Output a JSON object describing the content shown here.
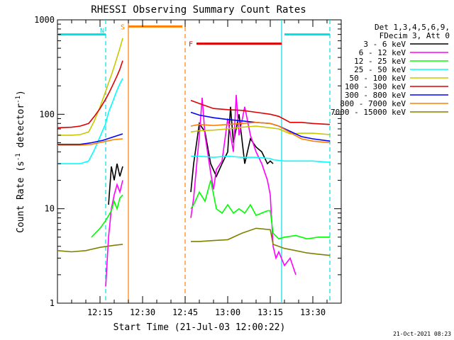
{
  "chart_data": {
    "type": "line",
    "title": "RHESSI Observing Summary Count Rates",
    "xlabel": "Start Time (21-Jul-03 12:00:22)",
    "ylabel_main": "Count Rate (s",
    "ylabel_sup1": "-1",
    "ylabel_mid": " detector",
    "ylabel_sup2": "-1",
    "ylabel_end": ")",
    "y_scale": "log",
    "xlim": [
      0,
      100
    ],
    "ylim": [
      1,
      1000
    ],
    "x_ticks": [
      {
        "x": 15,
        "label": "12:15"
      },
      {
        "x": 30,
        "label": "12:30"
      },
      {
        "x": 45,
        "label": "12:45"
      },
      {
        "x": 60,
        "label": "13:00"
      },
      {
        "x": 75,
        "label": "13:15"
      },
      {
        "x": 90,
        "label": "13:30"
      }
    ],
    "y_ticks": [
      {
        "y": 1,
        "label": "1"
      },
      {
        "y": 10,
        "label": "10"
      },
      {
        "y": 100,
        "label": "100"
      },
      {
        "y": 1000,
        "label": "1000"
      }
    ],
    "legend_header": [
      "Det 1,3,4,5,6,9,",
      "FDecim 3, Att 0"
    ],
    "legend_position": "right",
    "footer_date": "21-Oct-2021 08:23",
    "series": [
      {
        "name": "3 - 6 keV",
        "color": "#000000",
        "x": [
          18,
          19,
          20,
          21,
          22,
          23,
          47,
          48,
          50,
          52,
          54,
          56,
          58,
          60,
          61,
          62,
          64,
          66,
          68,
          70,
          72,
          74,
          75,
          76
        ],
        "y": [
          11,
          28,
          20,
          30,
          22,
          28,
          15,
          30,
          80,
          65,
          30,
          22,
          30,
          40,
          120,
          50,
          100,
          30,
          55,
          45,
          40,
          30,
          32,
          30
        ]
      },
      {
        "name": "6 - 12 keV",
        "color": "#ff00ff",
        "x": [
          17,
          18,
          19,
          20,
          21,
          22,
          23,
          47,
          48,
          50,
          51,
          52,
          54,
          55,
          56,
          58,
          60,
          62,
          63,
          64,
          66,
          68,
          70,
          72,
          74,
          75,
          76,
          77,
          78,
          80,
          82,
          84
        ],
        "y": [
          1.5,
          5,
          10,
          14,
          18,
          15,
          20,
          8,
          13,
          60,
          150,
          60,
          24,
          16,
          26,
          32,
          90,
          40,
          160,
          60,
          120,
          60,
          40,
          30,
          20,
          14,
          4,
          3,
          3.5,
          2.5,
          3,
          2
        ]
      },
      {
        "name": "12 - 25 keV",
        "color": "#00ff00",
        "x": [
          12,
          15,
          17,
          19,
          20,
          21,
          22,
          23,
          47,
          48,
          50,
          52,
          54,
          56,
          58,
          60,
          62,
          64,
          66,
          68,
          70,
          72,
          74,
          75,
          76,
          78,
          80,
          84,
          88,
          92,
          96
        ],
        "y": [
          5,
          6.2,
          7.5,
          9.5,
          12,
          10,
          13,
          14,
          10,
          11,
          15,
          12,
          20,
          10,
          9,
          11,
          9,
          10,
          9,
          11,
          8.5,
          9,
          9.5,
          9.5,
          5.5,
          4.8,
          5,
          5.2,
          4.8,
          5,
          5
        ]
      },
      {
        "name": "25 - 50 keV",
        "color": "#00ffff",
        "x": [
          0,
          5,
          8,
          11,
          13,
          15,
          17,
          18,
          19,
          20,
          21,
          22,
          23,
          47,
          50,
          55,
          60,
          65,
          70,
          75,
          76,
          80,
          85,
          90,
          96
        ],
        "y": [
          30,
          30,
          30,
          32,
          42,
          58,
          80,
          105,
          125,
          150,
          180,
          210,
          240,
          36,
          36,
          35,
          36,
          35,
          35,
          34,
          33,
          32,
          32,
          32,
          31
        ]
      },
      {
        "name": "50 - 100 keV",
        "color": "#c8c800",
        "x": [
          0,
          5,
          8,
          11,
          13,
          15,
          17,
          18,
          19,
          20,
          21,
          22,
          23,
          47,
          50,
          55,
          60,
          65,
          70,
          75,
          78,
          82,
          86,
          90,
          96
        ],
        "y": [
          60,
          60,
          61,
          65,
          85,
          120,
          175,
          215,
          260,
          320,
          400,
          500,
          640,
          65,
          67,
          68,
          70,
          73,
          75,
          72,
          70,
          62,
          63,
          63,
          61
        ]
      },
      {
        "name": "100 - 300 keV",
        "color": "#e00000",
        "x": [
          0,
          5,
          8,
          11,
          13,
          15,
          17,
          18,
          19,
          20,
          21,
          22,
          23,
          47,
          50,
          55,
          60,
          65,
          70,
          75,
          78,
          82,
          86,
          90,
          96
        ],
        "y": [
          72,
          73,
          75,
          80,
          95,
          115,
          145,
          165,
          190,
          220,
          255,
          300,
          370,
          140,
          130,
          115,
          112,
          110,
          105,
          100,
          95,
          82,
          82,
          80,
          78
        ]
      },
      {
        "name": "300 - 800 keV",
        "color": "#0000ff",
        "x": [
          0,
          8,
          12,
          16,
          20,
          23,
          47,
          50,
          55,
          60,
          65,
          70,
          75,
          78,
          82,
          86,
          90,
          96
        ],
        "y": [
          48,
          48,
          50,
          53,
          58,
          62,
          105,
          98,
          92,
          88,
          85,
          82,
          80,
          75,
          66,
          58,
          55,
          52
        ]
      },
      {
        "name": "800 - 7000 keV",
        "color": "#ff8000",
        "x": [
          0,
          8,
          12,
          16,
          20,
          23,
          47,
          50,
          55,
          60,
          65,
          70,
          75,
          78,
          82,
          86,
          90,
          96
        ],
        "y": [
          47,
          47,
          48,
          51,
          54,
          55,
          75,
          78,
          76,
          78,
          80,
          82,
          80,
          75,
          64,
          55,
          52,
          50
        ]
      },
      {
        "name": "7000 - 15000 keV",
        "color": "#808000",
        "x": [
          0,
          5,
          10,
          15,
          20,
          23,
          47,
          50,
          55,
          60,
          65,
          70,
          75,
          76,
          80,
          84,
          88,
          92,
          96
        ],
        "y": [
          3.6,
          3.5,
          3.6,
          3.9,
          4.1,
          4.2,
          4.5,
          4.5,
          4.6,
          4.7,
          5.5,
          6.2,
          6.0,
          4.2,
          3.8,
          3.6,
          3.4,
          3.3,
          3.2
        ]
      }
    ],
    "annotations": [
      {
        "label": "N",
        "color": "#00e0e0",
        "x_start": 0,
        "x_end": 17,
        "y": 700
      },
      {
        "label": "S",
        "color": "#ff8000",
        "x_start": 25,
        "x_end": 44,
        "y": 850
      },
      {
        "label": "F",
        "color": "#e00000",
        "x_start": 49,
        "x_end": 79,
        "y": 560
      },
      {
        "label": "",
        "color": "#00e0e0",
        "x_start": 80,
        "x_end": 96,
        "y": 700
      }
    ],
    "vertical_lines": [
      {
        "x": 17,
        "color": "#00e0e0",
        "dashed": true
      },
      {
        "x": 25,
        "color": "#ff8000",
        "dashed": false
      },
      {
        "x": 45,
        "color": "#ff8000",
        "dashed": true
      },
      {
        "x": 79,
        "color": "#00e0e0",
        "dashed": false
      },
      {
        "x": 96,
        "color": "#00e0e0",
        "dashed": true
      }
    ]
  }
}
